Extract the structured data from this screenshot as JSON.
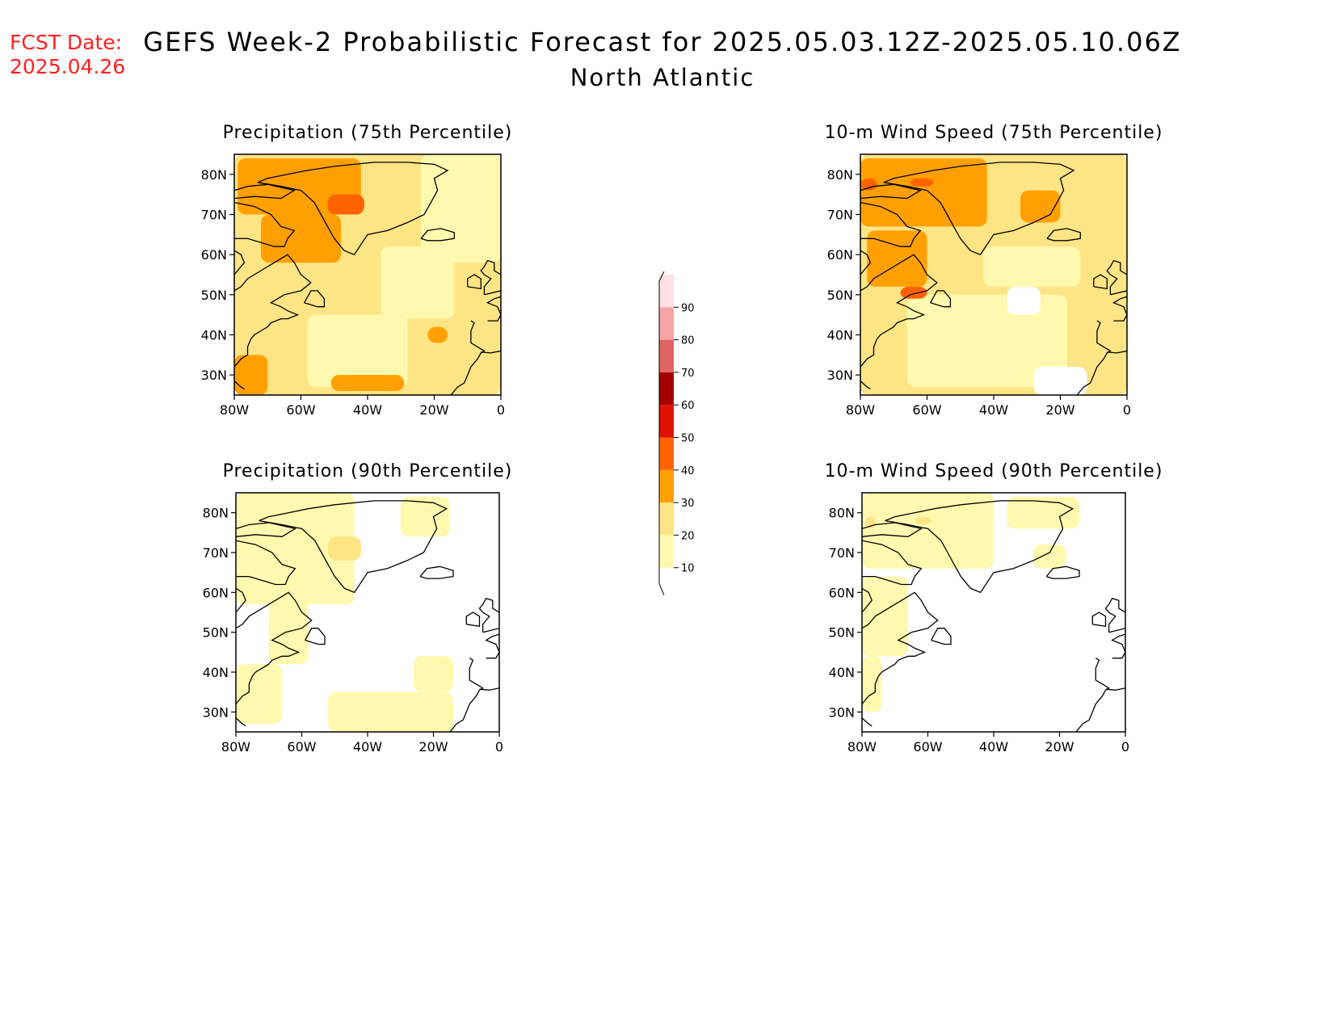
{
  "header": {
    "fcst_label": "FCST Date:",
    "fcst_date": "2025.04.26",
    "title": "GEFS Week-2 Probabilistic Forecast for 2025.05.03.12Z-2025.05.10.06Z",
    "subtitle": "North Atlantic"
  },
  "axes": {
    "lon_labels": [
      "80W",
      "60W",
      "40W",
      "20W",
      "0"
    ],
    "lat_labels": [
      "80N",
      "70N",
      "60N",
      "50N",
      "40N",
      "30N"
    ],
    "lon_range": [
      -80,
      0
    ],
    "lat_range": [
      25,
      85
    ]
  },
  "panels": [
    {
      "title": "Precipitation (75th Percentile)",
      "variable": "precipitation",
      "percentile": 75
    },
    {
      "title": "10-m Wind Speed (75th Percentile)",
      "variable": "wind",
      "percentile": 75
    },
    {
      "title": "Precipitation (90th Percentile)",
      "variable": "precipitation",
      "percentile": 90
    },
    {
      "title": "10-m Wind Speed (90th Percentile)",
      "variable": "wind",
      "percentile": 90
    }
  ],
  "colorbar": {
    "levels": [
      "10",
      "20",
      "30",
      "40",
      "50",
      "60",
      "70",
      "80",
      "90"
    ],
    "colors": [
      "#fff9b0",
      "#fde485",
      "#ffa000",
      "#ff6300",
      "#e01000",
      "#a50000",
      "#e06464",
      "#f7a4a4",
      "#ffe0e6"
    ]
  },
  "chart_data": {
    "type": "heatmap",
    "unit_note": "",
    "legend": "center",
    "panel_regions": [
      [
        {
          "level": 20,
          "lon": [
            -80,
            0
          ],
          "lat": [
            25,
            85
          ]
        },
        {
          "level": 10,
          "lon": [
            -58,
            -28
          ],
          "lat": [
            27,
            45
          ]
        },
        {
          "level": 10,
          "lon": [
            -36,
            -14
          ],
          "lat": [
            44,
            62
          ]
        },
        {
          "level": 10,
          "lon": [
            -24,
            0
          ],
          "lat": [
            58,
            85
          ]
        },
        {
          "level": 30,
          "lon": [
            -79,
            -42
          ],
          "lat": [
            70,
            84
          ]
        },
        {
          "level": 30,
          "lon": [
            -72,
            -48
          ],
          "lat": [
            58,
            70
          ]
        },
        {
          "level": 40,
          "lon": [
            -52,
            -41
          ],
          "lat": [
            70,
            75
          ]
        },
        {
          "level": 30,
          "lon": [
            -80,
            -70
          ],
          "lat": [
            25,
            35
          ]
        },
        {
          "level": 30,
          "lon": [
            -51,
            -29
          ],
          "lat": [
            26,
            30
          ]
        },
        {
          "level": 30,
          "lon": [
            -22,
            -16
          ],
          "lat": [
            38,
            42
          ]
        }
      ],
      [
        {
          "level": 20,
          "lon": [
            -80,
            0
          ],
          "lat": [
            25,
            85
          ]
        },
        {
          "level": 10,
          "lon": [
            -66,
            -18
          ],
          "lat": [
            27,
            50
          ]
        },
        {
          "level": 10,
          "lon": [
            -43,
            -14
          ],
          "lat": [
            52,
            62
          ]
        },
        {
          "level": 0,
          "lon": [
            -36,
            -26
          ],
          "lat": [
            45,
            52
          ]
        },
        {
          "level": 0,
          "lon": [
            -28,
            -12
          ],
          "lat": [
            25,
            32
          ]
        },
        {
          "level": 30,
          "lon": [
            -80,
            -42
          ],
          "lat": [
            67,
            84
          ]
        },
        {
          "level": 30,
          "lon": [
            -78,
            -60
          ],
          "lat": [
            52,
            66
          ]
        },
        {
          "level": 40,
          "lon": [
            -65,
            -58
          ],
          "lat": [
            77,
            79
          ]
        },
        {
          "level": 40,
          "lon": [
            -80,
            -75
          ],
          "lat": [
            76,
            79
          ]
        },
        {
          "level": 40,
          "lon": [
            -68,
            -60
          ],
          "lat": [
            49,
            52
          ]
        },
        {
          "level": 30,
          "lon": [
            -32,
            -20
          ],
          "lat": [
            68,
            76
          ]
        }
      ],
      [
        {
          "level": 10,
          "lon": [
            -80,
            -44
          ],
          "lat": [
            57,
            85
          ]
        },
        {
          "level": 10,
          "lon": [
            -70,
            -58
          ],
          "lat": [
            42,
            58
          ]
        },
        {
          "level": 10,
          "lon": [
            -80,
            -66
          ],
          "lat": [
            27,
            42
          ]
        },
        {
          "level": 10,
          "lon": [
            -52,
            -14
          ],
          "lat": [
            25,
            35
          ]
        },
        {
          "level": 10,
          "lon": [
            -26,
            -14
          ],
          "lat": [
            35,
            44
          ]
        },
        {
          "level": 10,
          "lon": [
            -30,
            -15
          ],
          "lat": [
            74,
            84
          ]
        },
        {
          "level": 20,
          "lon": [
            -52,
            -42
          ],
          "lat": [
            68,
            74
          ]
        }
      ],
      [
        {
          "level": 10,
          "lon": [
            -80,
            -40
          ],
          "lat": [
            66,
            85
          ]
        },
        {
          "level": 10,
          "lon": [
            -36,
            -14
          ],
          "lat": [
            76,
            84
          ]
        },
        {
          "level": 10,
          "lon": [
            -80,
            -66
          ],
          "lat": [
            44,
            64
          ]
        },
        {
          "level": 10,
          "lon": [
            -80,
            -74
          ],
          "lat": [
            30,
            44
          ]
        },
        {
          "level": 10,
          "lon": [
            -28,
            -18
          ],
          "lat": [
            66,
            72
          ]
        },
        {
          "level": 20,
          "lon": [
            -64,
            -59
          ],
          "lat": [
            77,
            79
          ]
        },
        {
          "level": 20,
          "lon": [
            -79,
            -76
          ],
          "lat": [
            76,
            79
          ]
        }
      ]
    ]
  }
}
